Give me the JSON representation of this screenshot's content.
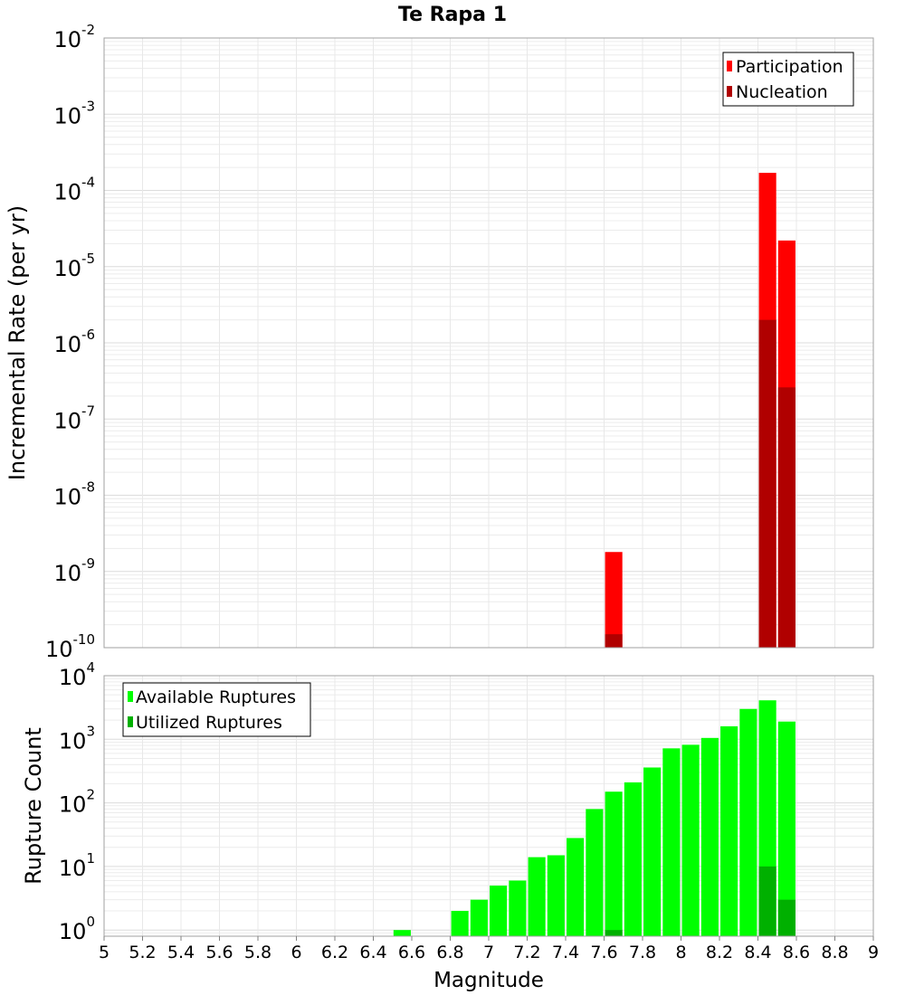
{
  "title": "Te Rapa 1",
  "colors": {
    "participation": "#ff0000",
    "nucleation": "#b00000",
    "available": "#00ff00",
    "utilized": "#00b000",
    "grid": "#e6e6e6",
    "frame": "#a0a0a0"
  },
  "chart_data": [
    {
      "type": "bar",
      "name": "rate-chart",
      "ylabel": "Incremental Rate (per yr)",
      "xlabel": "",
      "yscale": "log",
      "ylim": [
        1e-10,
        0.01
      ],
      "xlim": [
        5,
        9
      ],
      "y_tick_exponents": [
        "-2",
        "-3",
        "-4",
        "-5",
        "-6",
        "-7",
        "-8",
        "-9",
        "-10"
      ],
      "legend": {
        "position": "top-right",
        "entries": [
          "Participation",
          "Nucleation"
        ]
      },
      "bar_width": 0.09,
      "series": [
        {
          "name": "Participation",
          "points": [
            [
              7.65,
              1.8e-09
            ],
            [
              8.45,
              0.00017
            ],
            [
              8.55,
              2.2e-05
            ]
          ]
        },
        {
          "name": "Nucleation",
          "points": [
            [
              7.65,
              1.5e-10
            ],
            [
              8.45,
              2e-06
            ],
            [
              8.55,
              2.6e-07
            ]
          ]
        }
      ]
    },
    {
      "type": "bar",
      "name": "count-chart",
      "ylabel": "Rupture Count",
      "xlabel": "Magnitude",
      "yscale": "log",
      "ylim": [
        0.8,
        10000
      ],
      "xlim": [
        5,
        9
      ],
      "y_tick_exponents": [
        "0",
        "1",
        "2",
        "3",
        "4"
      ],
      "x_ticks": [
        "5",
        "5.2",
        "5.4",
        "5.6",
        "5.8",
        "6",
        "6.2",
        "6.4",
        "6.6",
        "6.8",
        "7",
        "7.2",
        "7.4",
        "7.6",
        "7.8",
        "8",
        "8.2",
        "8.4",
        "8.6",
        "8.8",
        "9"
      ],
      "legend": {
        "position": "top-left",
        "entries": [
          "Available Ruptures",
          "Utilized Ruptures"
        ]
      },
      "bar_width": 0.09,
      "series": [
        {
          "name": "Available Ruptures",
          "points": [
            [
              6.55,
              1
            ],
            [
              6.85,
              2
            ],
            [
              6.95,
              3
            ],
            [
              7.05,
              5
            ],
            [
              7.15,
              6
            ],
            [
              7.25,
              14
            ],
            [
              7.35,
              15
            ],
            [
              7.45,
              28
            ],
            [
              7.55,
              80
            ],
            [
              7.65,
              150
            ],
            [
              7.75,
              210
            ],
            [
              7.85,
              360
            ],
            [
              7.95,
              720
            ],
            [
              8.05,
              820
            ],
            [
              8.15,
              1050
            ],
            [
              8.25,
              1600
            ],
            [
              8.35,
              3000
            ],
            [
              8.45,
              4100
            ],
            [
              8.55,
              1900
            ]
          ]
        },
        {
          "name": "Utilized Ruptures",
          "points": [
            [
              7.65,
              1
            ],
            [
              8.45,
              10
            ],
            [
              8.55,
              3
            ]
          ]
        }
      ]
    }
  ]
}
